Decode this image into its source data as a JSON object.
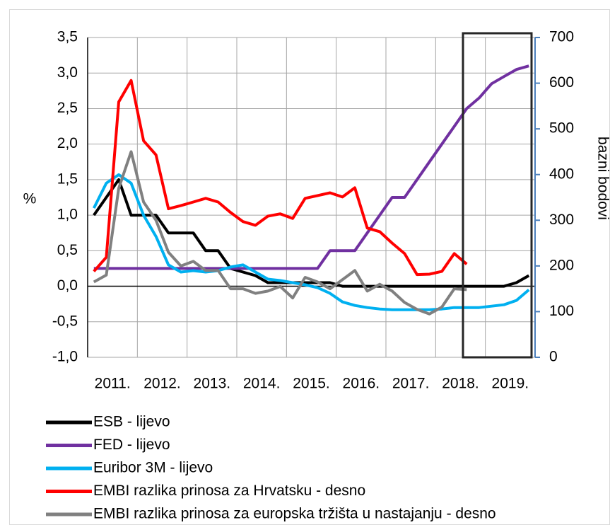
{
  "chart_data": {
    "type": "line",
    "y_label": "%",
    "y2_label": "bazni bodovi",
    "categories": [
      "2011.",
      "2012.",
      "2013.",
      "2014.",
      "2015.",
      "2016.",
      "2017.",
      "2018.",
      "2019."
    ],
    "x": [
      2011.125,
      2011.375,
      2011.625,
      2011.875,
      2012.125,
      2012.375,
      2012.625,
      2012.875,
      2013.125,
      2013.375,
      2013.625,
      2013.875,
      2014.125,
      2014.375,
      2014.625,
      2014.875,
      2015.125,
      2015.375,
      2015.625,
      2015.875,
      2016.125,
      2016.375,
      2016.625,
      2016.875,
      2017.125,
      2017.375,
      2017.625,
      2017.875,
      2018.125,
      2018.375,
      2018.625,
      2018.875,
      2019.125,
      2019.375,
      2019.625,
      2019.875
    ],
    "xlim": [
      2011,
      2020
    ],
    "xticks": [
      2011,
      2012,
      2013,
      2014,
      2015,
      2016,
      2017,
      2018,
      2019,
      2020
    ],
    "ylim": [
      -1.0,
      3.5
    ],
    "yticks": [
      {
        "value": -1.0,
        "label": "-1,0"
      },
      {
        "value": -0.5,
        "label": "-0,5"
      },
      {
        "value": 0,
        "label": "0,0"
      },
      {
        "value": 0.5,
        "label": "0,5"
      },
      {
        "value": 1.0,
        "label": "1,0"
      },
      {
        "value": 1.5,
        "label": "1,5"
      },
      {
        "value": 2.0,
        "label": "2,0"
      },
      {
        "value": 2.5,
        "label": "2,5"
      },
      {
        "value": 3.0,
        "label": "3,0"
      },
      {
        "value": 3.5,
        "label": "3,5"
      }
    ],
    "y2lim": [
      0,
      700
    ],
    "y2ticks": [
      0,
      100,
      200,
      300,
      400,
      500,
      600,
      700
    ],
    "grid": true,
    "legend": "bottom",
    "series": [
      {
        "name": "ESB - lijevo",
        "color": "#000000",
        "values": [
          1.0,
          1.25,
          1.5,
          1.0,
          1.0,
          1.0,
          0.75,
          0.75,
          0.75,
          0.5,
          0.5,
          0.25,
          0.2,
          0.15,
          0.05,
          0.05,
          0.05,
          0.05,
          0.05,
          0.05,
          0.0,
          0.0,
          0.0,
          0.0,
          0.0,
          0.0,
          0.0,
          0.0,
          0.0,
          0.0,
          0.0,
          0.0,
          0.0,
          0.0,
          0.05,
          0.15
        ]
      },
      {
        "name": "FED - lijevo",
        "color": "#7030a0",
        "values": [
          0.25,
          0.25,
          0.25,
          0.25,
          0.25,
          0.25,
          0.25,
          0.25,
          0.25,
          0.25,
          0.25,
          0.25,
          0.25,
          0.25,
          0.25,
          0.25,
          0.25,
          0.25,
          0.25,
          0.5,
          0.5,
          0.5,
          0.75,
          1.0,
          1.25,
          1.25,
          1.5,
          1.75,
          2.0,
          2.25,
          2.5,
          2.65,
          2.85,
          2.95,
          3.05,
          3.1
        ]
      },
      {
        "name": "Euribor 3M - lijevo",
        "color": "#00b0f0",
        "values": [
          1.1,
          1.45,
          1.57,
          1.45,
          1.0,
          0.7,
          0.3,
          0.2,
          0.22,
          0.2,
          0.22,
          0.27,
          0.3,
          0.2,
          0.1,
          0.08,
          0.05,
          0.02,
          -0.02,
          -0.1,
          -0.22,
          -0.27,
          -0.3,
          -0.32,
          -0.33,
          -0.33,
          -0.33,
          -0.33,
          -0.32,
          -0.3,
          -0.3,
          -0.3,
          -0.28,
          -0.26,
          -0.2,
          -0.05
        ]
      },
      {
        "name": "EMBI razlika prinosa za Hrvatsku - desno",
        "color": "#ff0000",
        "axis": "y2",
        "values": [
          188,
          219,
          559,
          606,
          474,
          443,
          325,
          332,
          340,
          348,
          340,
          317,
          297,
          289,
          309,
          314,
          304,
          348,
          354,
          360,
          351,
          371,
          283,
          275,
          250,
          227,
          181,
          182,
          188,
          227,
          204,
          null,
          null,
          null,
          null,
          null
        ]
      },
      {
        "name": "EMBI razlika prinosa za europska tržišta u nastajanju - desno",
        "color": "#808080",
        "axis": "y2",
        "values": [
          165,
          180,
          370,
          450,
          340,
          300,
          230,
          200,
          210,
          190,
          190,
          150,
          150,
          140,
          145,
          155,
          130,
          175,
          165,
          150,
          170,
          190,
          145,
          160,
          145,
          120,
          105,
          95,
          110,
          150,
          148,
          null,
          null,
          null,
          null,
          null
        ]
      }
    ]
  }
}
